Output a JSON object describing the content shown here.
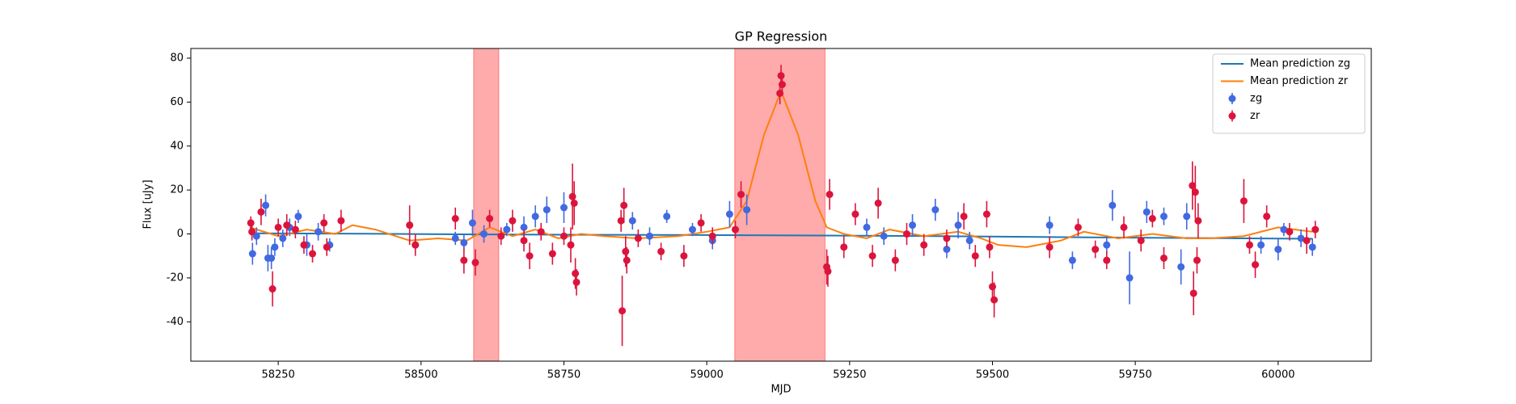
{
  "chart_data": {
    "type": "line",
    "title": "GP Regression",
    "xlabel": "MJD",
    "ylabel": "Flux [uJy]",
    "xlim": [
      58097,
      60163
    ],
    "ylim": [
      -57.9,
      84.4
    ],
    "xticks": [
      58250,
      58500,
      58750,
      59000,
      59250,
      59500,
      59750,
      60000
    ],
    "yticks": [
      -40,
      -20,
      0,
      20,
      40,
      60,
      80
    ],
    "legend": "upper right",
    "spans": [
      {
        "x": [
          58592,
          58636
        ],
        "color": "#ff0000"
      },
      {
        "x": [
          59049,
          59207
        ],
        "color": "#ff0000"
      }
    ],
    "series": [
      {
        "name": "Mean prediction zg",
        "type": "line",
        "color": "#1f77b4",
        "x": [
          58200,
          58400,
          58600,
          58800,
          59000,
          59200,
          59400,
          59600,
          59800,
          60000,
          60060
        ],
        "values": [
          0.3,
          0.1,
          -0.2,
          -0.4,
          -0.5,
          -0.7,
          -1.0,
          -1.4,
          -1.8,
          -2.1,
          -2.2
        ]
      },
      {
        "name": "Mean prediction zr",
        "type": "line",
        "color": "#ff7f0e",
        "x": [
          58200,
          58250,
          58300,
          58350,
          58380,
          58420,
          58480,
          58530,
          58580,
          58620,
          58660,
          58700,
          58740,
          58780,
          58820,
          58880,
          58950,
          59000,
          59040,
          59070,
          59100,
          59130,
          59160,
          59190,
          59210,
          59240,
          59280,
          59320,
          59380,
          59440,
          59480,
          59510,
          59560,
          59620,
          59660,
          59720,
          59780,
          59840,
          59880,
          59940,
          60000,
          60030,
          60060
        ],
        "values": [
          3,
          -1,
          2,
          0,
          4,
          2,
          -3,
          -2,
          -3,
          3,
          -1,
          2,
          -2,
          0,
          -1,
          -2,
          -1,
          1,
          3,
          15,
          45,
          65,
          45,
          15,
          3,
          0,
          -2,
          2,
          -1,
          1,
          -2,
          -5,
          -6,
          -3,
          1,
          -2,
          0,
          -2,
          -2,
          -1,
          3,
          2,
          1
        ]
      },
      {
        "name": "zg",
        "type": "errorbar",
        "color": "#4169e1",
        "x": [
          58205,
          58212,
          58228,
          58232,
          58238,
          58244,
          58258,
          58270,
          58285,
          58300,
          58320,
          58340,
          58490,
          58560,
          58575,
          58590,
          58610,
          58650,
          58680,
          58700,
          58720,
          58750,
          58870,
          58900,
          58930,
          58975,
          59010,
          59040,
          59070,
          59280,
          59310,
          59360,
          59400,
          59420,
          59440,
          59460,
          59600,
          59640,
          59700,
          59710,
          59740,
          59770,
          59800,
          59830,
          59840,
          59970,
          60000,
          60010,
          60040,
          60060
        ],
        "values": [
          -9,
          -1,
          13,
          -11,
          -11,
          -6,
          -2,
          3,
          8,
          -5,
          1,
          -5,
          -5,
          -2,
          -4,
          5,
          0,
          2,
          3,
          8,
          11,
          12,
          6,
          -1,
          8,
          2,
          -3,
          9,
          11,
          3,
          -1,
          4,
          11,
          -7,
          4,
          -3,
          4,
          -12,
          -5,
          13,
          -20,
          10,
          8,
          -15,
          8,
          -5,
          -7,
          2,
          -2,
          -6
        ],
        "errors": [
          5,
          4,
          5,
          6,
          5,
          4,
          4,
          4,
          3,
          5,
          4,
          3,
          4,
          3,
          4,
          6,
          4,
          3,
          5,
          5,
          6,
          7,
          4,
          4,
          3,
          3,
          4,
          6,
          7,
          4,
          4,
          5,
          5,
          4,
          6,
          4,
          4,
          4,
          4,
          7,
          12,
          5,
          4,
          8,
          6,
          4,
          5,
          3,
          4,
          4
        ]
      },
      {
        "name": "zr",
        "type": "errorbar",
        "color": "#dc143c",
        "x": [
          58202,
          58204,
          58220,
          58240,
          58250,
          58265,
          58280,
          58295,
          58310,
          58330,
          58335,
          58360,
          58480,
          58490,
          58560,
          58575,
          58595,
          58620,
          58640,
          58660,
          58680,
          58690,
          58710,
          58730,
          58750,
          58762,
          58765,
          58768,
          58770,
          58772,
          58850,
          58852,
          58855,
          58858,
          58860,
          58880,
          58920,
          58960,
          58990,
          59010,
          59050,
          59060,
          59128,
          59130,
          59132,
          59210,
          59212,
          59215,
          59240,
          59260,
          59290,
          59300,
          59330,
          59350,
          59380,
          59420,
          59450,
          59470,
          59490,
          59495,
          59500,
          59503,
          59600,
          59650,
          59680,
          59700,
          59730,
          59760,
          59780,
          59800,
          59850,
          59852,
          59855,
          59858,
          59860,
          59940,
          59950,
          59960,
          59980,
          60020,
          60050,
          60065
        ],
        "values": [
          5,
          1,
          10,
          -25,
          3,
          4,
          2,
          -5,
          -9,
          5,
          -6,
          6,
          4,
          -5,
          7,
          -12,
          -13,
          7,
          -1,
          6,
          -3,
          -10,
          1,
          -9,
          -1,
          -5,
          17,
          14,
          -18,
          -22,
          6,
          -35,
          13,
          -8,
          -12,
          -2,
          -8,
          -10,
          5,
          -1,
          2,
          18,
          64,
          72,
          68,
          -15,
          -17,
          18,
          -6,
          9,
          -10,
          14,
          -12,
          0,
          -5,
          -2,
          8,
          -10,
          9,
          -6,
          -24,
          -30,
          -6,
          3,
          -7,
          -12,
          3,
          -3,
          7,
          -11,
          22,
          -27,
          19,
          -12,
          6,
          15,
          -5,
          -14,
          8,
          1,
          -3,
          2
        ],
        "errors": [
          3,
          4,
          6,
          8,
          4,
          5,
          4,
          4,
          4,
          4,
          4,
          5,
          9,
          5,
          5,
          6,
          6,
          4,
          4,
          5,
          5,
          6,
          4,
          5,
          4,
          8,
          15,
          10,
          7,
          6,
          5,
          16,
          8,
          7,
          6,
          4,
          4,
          5,
          4,
          4,
          4,
          6,
          5,
          5,
          5,
          8,
          7,
          7,
          5,
          5,
          5,
          7,
          5,
          5,
          5,
          4,
          6,
          5,
          6,
          5,
          7,
          8,
          5,
          4,
          4,
          4,
          5,
          5,
          4,
          5,
          11,
          10,
          12,
          6,
          8,
          10,
          4,
          6,
          5,
          4,
          6,
          4
        ]
      }
    ]
  }
}
